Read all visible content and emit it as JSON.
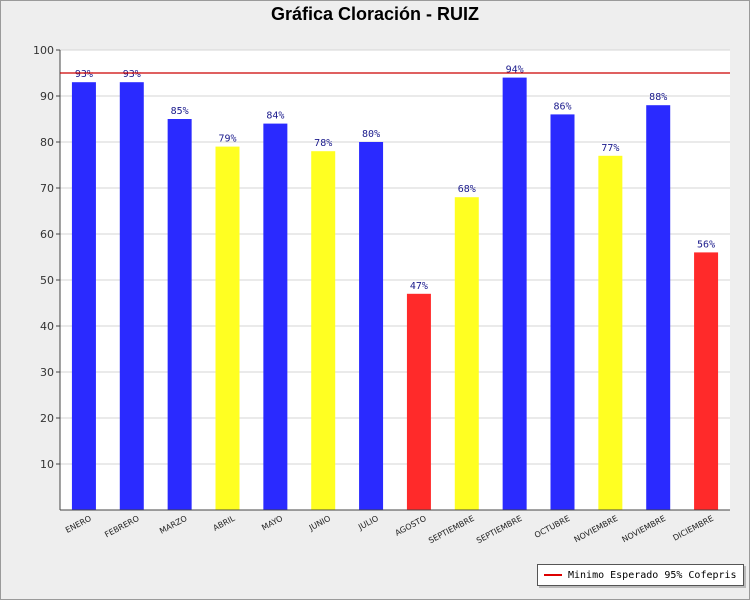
{
  "chart_data": {
    "type": "bar",
    "title": "Gráfica Cloración - RUIZ",
    "categories": [
      "ENERO",
      "FEBRERO",
      "MARZO",
      "ABRIL",
      "MAYO",
      "JUNIO",
      "JULIO",
      "AGOSTO",
      "SEPTIEMBRE",
      "SEPTIEMBRE",
      "OCTUBRE",
      "NOVIEMBRE",
      "NOVIEMBRE",
      "DICIEMBRE"
    ],
    "values": [
      93,
      93,
      85,
      79,
      84,
      78,
      80,
      47,
      68,
      94,
      86,
      77,
      88,
      56
    ],
    "data_labels": [
      "93%",
      "93%",
      "85%",
      "79%",
      "84%",
      "78%",
      "80%",
      "47%",
      "68%",
      "94%",
      "86%",
      "77%",
      "88%",
      "56%"
    ],
    "bar_colors": [
      "#2a2aff",
      "#2a2aff",
      "#2a2aff",
      "#ffff22",
      "#2a2aff",
      "#ffff22",
      "#2a2aff",
      "#ff2a2a",
      "#ffff22",
      "#2a2aff",
      "#2a2aff",
      "#ffff22",
      "#2a2aff",
      "#ff2a2a"
    ],
    "ylim": [
      0,
      100
    ],
    "yticks": [
      10,
      20,
      30,
      40,
      50,
      60,
      70,
      80,
      90,
      100
    ],
    "reference_line": {
      "value": 95,
      "color": "#cc0000"
    },
    "legend": {
      "label": "Minimo Esperado 95% Cofepris",
      "color": "#dd0000",
      "placement": "bottom-right"
    },
    "grid": true
  }
}
